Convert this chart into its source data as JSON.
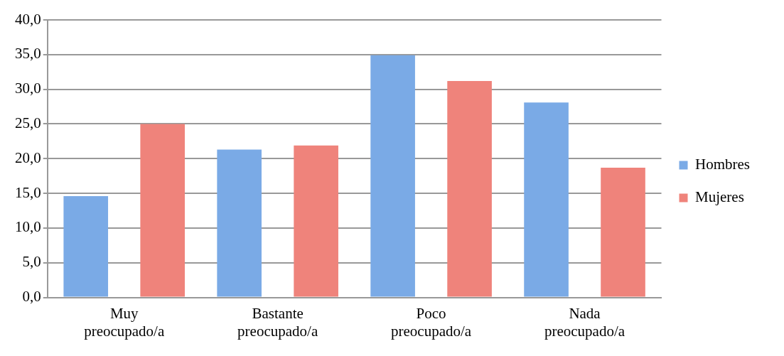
{
  "chart_data": {
    "type": "bar",
    "categories": [
      "Muy preocupado/a",
      "Bastante preocupado/a",
      "Poco preocupado/a",
      "Nada preocupado/a"
    ],
    "series": [
      {
        "name": "Hombres",
        "color": "#7aaae6",
        "values": [
          14.6,
          21.3,
          34.9,
          28.1
        ]
      },
      {
        "name": "Mujeres",
        "color": "#ef837b",
        "values": [
          25.0,
          21.9,
          31.2,
          18.7
        ]
      }
    ],
    "ylim": [
      0,
      40
    ],
    "yticks": [
      {
        "value": 0,
        "label": "0,0"
      },
      {
        "value": 5,
        "label": "5,0"
      },
      {
        "value": 10,
        "label": "10,0"
      },
      {
        "value": 15,
        "label": "15,0"
      },
      {
        "value": 20,
        "label": "20,0"
      },
      {
        "value": 25,
        "label": "25,0"
      },
      {
        "value": 30,
        "label": "30,0"
      },
      {
        "value": 35,
        "label": "35,0"
      },
      {
        "value": 40,
        "label": "40,0"
      }
    ],
    "grid": "y",
    "legend": "right"
  }
}
